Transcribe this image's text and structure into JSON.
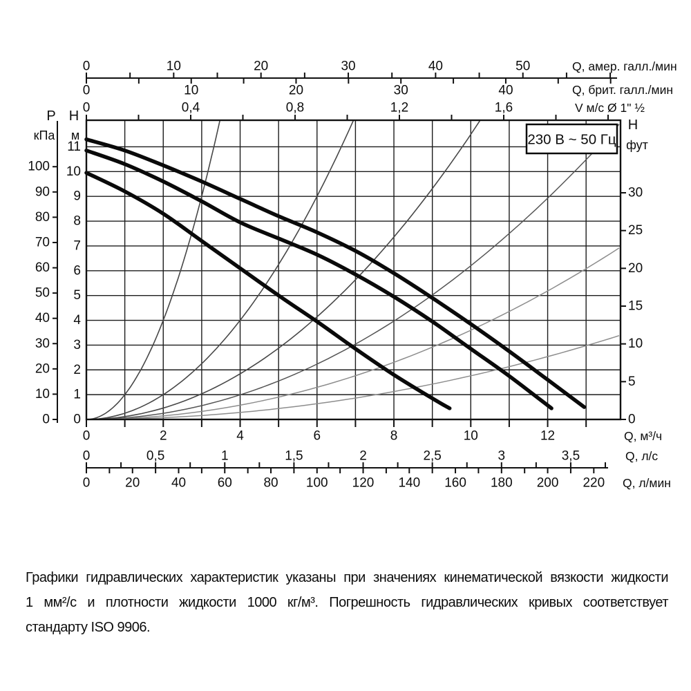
{
  "voltage_label": "230 В ~ 50 Гц",
  "footnote": {
    "lines": [
      "Графики гидравлических характеристик указаны при значениях кинематической вязкости жидкости",
      "1 мм²/с и плотности жидкости 1000 кг/м³. Погрешность гидравлических кривых соответствует",
      "стандарту ISO 9906."
    ]
  },
  "chart_data": {
    "type": "line",
    "title": "230 В ~ 50 Гц",
    "x_base_unit": "м³/ч",
    "y_base_unit": "м",
    "x_range": [
      0,
      13.9
    ],
    "y_range": [
      0,
      12.1
    ],
    "grid": {
      "x_step": 1,
      "y_step": 1,
      "on": true,
      "color": "#1c1c1c"
    },
    "axes": {
      "top": [
        {
          "id": "us-gpm",
          "unit_label": "Q, амер. галл./мин",
          "factor": 0.22712,
          "tick_step": 5,
          "label_step": 10,
          "max_tick": 60,
          "labels": [
            "0",
            "10",
            "20",
            "30",
            "40",
            "50"
          ]
        },
        {
          "id": "imp-gpm",
          "unit_label": "Q, брит. галл./мин",
          "factor": 0.27276,
          "tick_step": 5,
          "label_step": 10,
          "max_tick": 50,
          "labels": [
            "0",
            "10",
            "20",
            "30",
            "40"
          ]
        },
        {
          "id": "velocity",
          "unit_label": "V м/с Ø 1\" ½",
          "factor": 6.786,
          "tick_step": 0.2,
          "label_step": 0.4,
          "max_tick": 2.0,
          "labels": [
            "0",
            "0,4",
            "0,8",
            "1,2",
            "1,6"
          ]
        }
      ],
      "bottom": [
        {
          "id": "m3h",
          "unit_label": "Q, м³/ч",
          "factor": 1,
          "tick_step": 1,
          "label_step": 2,
          "max_tick": 13,
          "labels": [
            "0",
            "2",
            "4",
            "6",
            "8",
            "10",
            "12"
          ]
        },
        {
          "id": "ls",
          "unit_label": "Q, л/с",
          "factor": 3.6,
          "tick_step": 0.25,
          "label_step": 0.5,
          "max_tick": 3.75,
          "labels": [
            "0",
            "0,5",
            "1",
            "1,5",
            "2",
            "2,5",
            "3",
            "3,5"
          ]
        },
        {
          "id": "lmin",
          "unit_label": "Q, л/мин",
          "factor": 0.06,
          "tick_step": 10,
          "label_step": 20,
          "max_tick": 220,
          "labels": [
            "0",
            "20",
            "40",
            "60",
            "80",
            "100",
            "120",
            "140",
            "160",
            "180",
            "200",
            "220"
          ]
        }
      ],
      "left": [
        {
          "id": "kpa",
          "title": "Р",
          "unit": "кПа",
          "factor": 0.10197,
          "tick_step": 10,
          "label_step": 10,
          "max_tick": 100,
          "labels": [
            "0",
            "10",
            "20",
            "30",
            "40",
            "50",
            "60",
            "70",
            "80",
            "90",
            "100"
          ]
        },
        {
          "id": "m",
          "title": "Н",
          "unit": "м",
          "factor": 1,
          "tick_step": 1,
          "label_step": 1,
          "max_tick": 11,
          "labels": [
            "0",
            "1",
            "2",
            "3",
            "4",
            "5",
            "6",
            "7",
            "8",
            "9",
            "10",
            "11"
          ]
        }
      ],
      "right": [
        {
          "id": "ft",
          "title": "Н",
          "unit": "фут",
          "factor": 0.3048,
          "tick_step": 5,
          "label_step": 5,
          "max_tick": 30,
          "labels": [
            "0",
            "5",
            "10",
            "15",
            "20",
            "25",
            "30"
          ]
        }
      ]
    },
    "series": [
      {
        "name": "pump-curve-speed-3",
        "style": "thick",
        "color": "#0a0a0a",
        "width": 5.5,
        "points": [
          [
            0,
            11.3
          ],
          [
            1,
            10.85
          ],
          [
            2,
            10.25
          ],
          [
            3,
            9.6
          ],
          [
            4,
            8.9
          ],
          [
            5,
            8.2
          ],
          [
            6,
            7.55
          ],
          [
            7,
            6.8
          ],
          [
            8,
            5.9
          ],
          [
            9,
            4.9
          ],
          [
            10,
            3.85
          ],
          [
            11,
            2.75
          ],
          [
            12,
            1.6
          ],
          [
            12.95,
            0.5
          ]
        ]
      },
      {
        "name": "pump-curve-speed-2",
        "style": "thick",
        "color": "#0a0a0a",
        "width": 5.5,
        "points": [
          [
            0,
            10.85
          ],
          [
            1,
            10.3
          ],
          [
            2,
            9.6
          ],
          [
            3,
            8.8
          ],
          [
            4,
            7.95
          ],
          [
            5,
            7.3
          ],
          [
            6,
            6.65
          ],
          [
            7,
            5.85
          ],
          [
            8,
            4.95
          ],
          [
            9,
            3.95
          ],
          [
            10,
            2.85
          ],
          [
            11,
            1.75
          ],
          [
            12.1,
            0.45
          ]
        ]
      },
      {
        "name": "pump-curve-speed-1",
        "style": "thick",
        "color": "#0a0a0a",
        "width": 5.5,
        "points": [
          [
            0,
            9.95
          ],
          [
            1,
            9.2
          ],
          [
            2,
            8.3
          ],
          [
            3,
            7.2
          ],
          [
            4,
            6.1
          ],
          [
            5,
            5.0
          ],
          [
            6,
            3.95
          ],
          [
            7,
            2.85
          ],
          [
            8,
            1.8
          ],
          [
            9,
            0.85
          ],
          [
            9.45,
            0.45
          ]
        ]
      }
    ],
    "system_curves": [
      {
        "k": 1.0,
        "color": "#474747",
        "width": 1.6
      },
      {
        "k": 0.25,
        "color": "#474747",
        "width": 1.6
      },
      {
        "k": 0.115,
        "color": "#474747",
        "width": 1.6
      },
      {
        "k": 0.062,
        "color": "#555555",
        "width": 1.5
      },
      {
        "k": 0.036,
        "color": "#8d8d8d",
        "width": 1.5
      },
      {
        "k": 0.0176,
        "color": "#8d8d8d",
        "width": 1.5
      }
    ]
  }
}
